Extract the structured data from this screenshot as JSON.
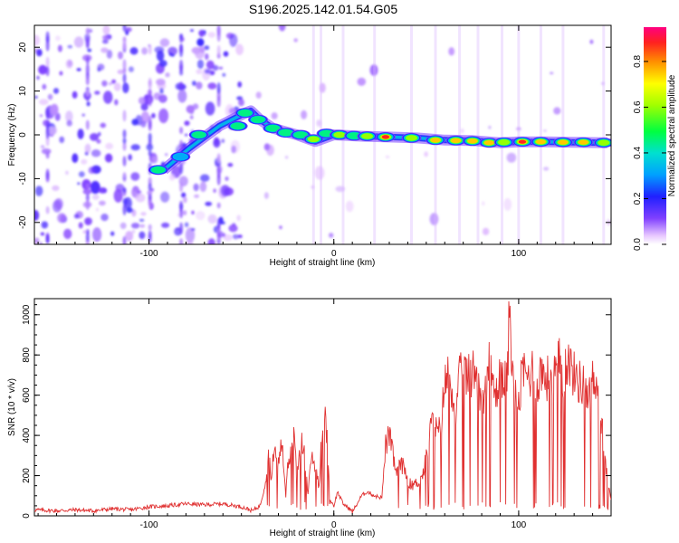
{
  "title": "S196.2025.142.01.54.G05",
  "chart_data": [
    {
      "type": "heatmap",
      "xlabel": "Height of straight line (km)",
      "ylabel": "Frequency (Hz)",
      "xlim": [
        -162,
        150
      ],
      "ylim": [
        -25,
        25
      ],
      "xticks": [
        -100,
        0,
        100
      ],
      "yticks": [
        -20,
        -10,
        0,
        10,
        20
      ],
      "colorbar": {
        "label": "Normalized spectral amplitude",
        "range": [
          0,
          0.95
        ],
        "ticks": [
          0.0,
          0.2,
          0.4,
          0.6,
          0.8
        ],
        "tick_labels": [
          "0.0",
          "0.2",
          "0.4",
          "0.6",
          "0.8"
        ]
      },
      "ridge": {
        "x": [
          -92,
          -78,
          -62,
          -48,
          -45,
          -40,
          -33,
          -20,
          -10,
          0,
          15,
          30,
          45,
          60,
          75,
          90,
          100,
          115,
          130,
          148
        ],
        "y": [
          -8,
          -3,
          2,
          5,
          5.5,
          3.5,
          1.5,
          0,
          -1.5,
          0,
          -0.3,
          -0.5,
          -0.7,
          -1.2,
          -1.3,
          -1.8,
          -1.6,
          -1.6,
          -1.7,
          -1.8
        ]
      },
      "peaks": [
        {
          "x": -95,
          "y": -8,
          "amp": 0.45
        },
        {
          "x": -83,
          "y": -5,
          "amp": 0.4
        },
        {
          "x": -73,
          "y": 0,
          "amp": 0.45
        },
        {
          "x": -52,
          "y": 2,
          "amp": 0.45
        },
        {
          "x": -48,
          "y": 5,
          "amp": 0.55
        },
        {
          "x": -41,
          "y": 3.5,
          "amp": 0.5
        },
        {
          "x": -33,
          "y": 1.5,
          "amp": 0.55
        },
        {
          "x": -26,
          "y": 0.5,
          "amp": 0.5
        },
        {
          "x": -18,
          "y": 0,
          "amp": 0.55
        },
        {
          "x": -11,
          "y": -1,
          "amp": 0.6
        },
        {
          "x": -4,
          "y": 0.3,
          "amp": 0.55
        },
        {
          "x": 3,
          "y": 0,
          "amp": 0.6
        },
        {
          "x": 11,
          "y": -0.2,
          "amp": 0.55
        },
        {
          "x": 18,
          "y": -0.3,
          "amp": 0.6
        },
        {
          "x": 28,
          "y": -0.5,
          "amp": 0.92
        },
        {
          "x": 42,
          "y": -0.7,
          "amp": 0.65
        },
        {
          "x": 55,
          "y": -1.2,
          "amp": 0.8
        },
        {
          "x": 66,
          "y": -1.3,
          "amp": 0.85
        },
        {
          "x": 75,
          "y": -1.4,
          "amp": 0.8
        },
        {
          "x": 84,
          "y": -1.8,
          "amp": 0.82
        },
        {
          "x": 92,
          "y": -1.7,
          "amp": 0.7
        },
        {
          "x": 102,
          "y": -1.6,
          "amp": 0.88
        },
        {
          "x": 112,
          "y": -1.6,
          "amp": 0.85
        },
        {
          "x": 124,
          "y": -1.7,
          "amp": 0.85
        },
        {
          "x": 135,
          "y": -1.7,
          "amp": 0.75
        },
        {
          "x": 146,
          "y": -1.8,
          "amp": 0.7
        }
      ]
    },
    {
      "type": "line",
      "xlabel": "Height of straight line (km)",
      "ylabel": "SNR (10 * v/v)",
      "xlim": [
        -162,
        150
      ],
      "ylim": [
        0,
        1080
      ],
      "xticks": [
        -100,
        0,
        100
      ],
      "yticks": [
        0,
        200,
        400,
        600,
        800,
        1000
      ],
      "color": "#e03030",
      "series": [
        {
          "x": [
            -162,
            -150,
            -140,
            -130,
            -120,
            -110,
            -100,
            -90,
            -80,
            -70,
            -60,
            -50,
            -44,
            -40,
            -38,
            -36,
            -35,
            -34,
            -32,
            -30,
            -28,
            -26,
            -25,
            -24,
            -22,
            -20,
            -18,
            -16,
            -14,
            -12,
            -10,
            -8,
            -6,
            -5,
            -4,
            -3,
            -2,
            0,
            2,
            5,
            8,
            10,
            12,
            15,
            18,
            20,
            22,
            24,
            26,
            28,
            30,
            32,
            34,
            36,
            38,
            40,
            42,
            44,
            46,
            48,
            50,
            52,
            54,
            56,
            58,
            60,
            62,
            64,
            66,
            68,
            70,
            72,
            74,
            76,
            78,
            80,
            82,
            84,
            86,
            88,
            90,
            92,
            94,
            95,
            96,
            97,
            98,
            100,
            102,
            104,
            106,
            108,
            110,
            112,
            114,
            116,
            118,
            120,
            122,
            124,
            126,
            128,
            130,
            132,
            134,
            136,
            138,
            140,
            142,
            144,
            146,
            148,
            150
          ],
          "y": [
            30,
            25,
            30,
            25,
            35,
            30,
            45,
            50,
            60,
            55,
            60,
            45,
            25,
            50,
            120,
            250,
            300,
            180,
            350,
            250,
            380,
            100,
            260,
            280,
            420,
            200,
            380,
            320,
            100,
            300,
            250,
            150,
            500,
            550,
            420,
            300,
            80,
            50,
            120,
            60,
            40,
            20,
            50,
            100,
            120,
            110,
            100,
            95,
            90,
            350,
            400,
            300,
            200,
            260,
            240,
            180,
            150,
            160,
            170,
            200,
            290,
            420,
            480,
            400,
            450,
            660,
            700,
            640,
            500,
            680,
            720,
            700,
            680,
            740,
            700,
            560,
            660,
            740,
            650,
            600,
            760,
            650,
            700,
            1080,
            870,
            650,
            600,
            540,
            720,
            700,
            690,
            740,
            650,
            720,
            700,
            680,
            700,
            720,
            760,
            700,
            780,
            740,
            700,
            680,
            650,
            660,
            580,
            700,
            600,
            560,
            340,
            200,
            80
          ]
        }
      ]
    }
  ]
}
